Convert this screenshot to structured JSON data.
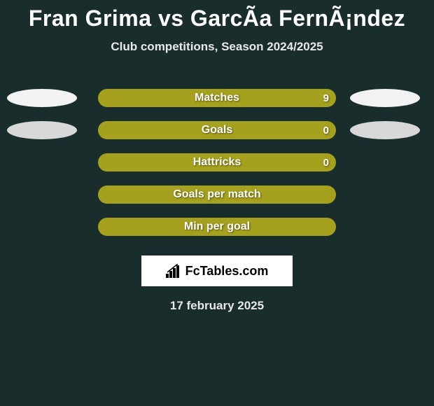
{
  "title": "Fran Grima vs GarcÃ­a FernÃ¡ndez",
  "subtitle": "Club competitions, Season 2024/2025",
  "date": "17 february 2025",
  "logo_text": "FcTables.com",
  "colors": {
    "background": "#1a2d2d",
    "bar_fill": "#a5a11f",
    "ellipse_light": "#f2f2f2",
    "ellipse_dark": "#d8d8d8",
    "text": "#ffffff"
  },
  "stats": [
    {
      "label": "Matches",
      "value": "9",
      "left_ellipse": true,
      "right_ellipse": true,
      "left_color": "#f2f2f2",
      "right_color": "#f2f2f2"
    },
    {
      "label": "Goals",
      "value": "0",
      "left_ellipse": true,
      "right_ellipse": true,
      "left_color": "#d8d8d8",
      "right_color": "#d8d8d8"
    },
    {
      "label": "Hattricks",
      "value": "0",
      "left_ellipse": false,
      "right_ellipse": false
    },
    {
      "label": "Goals per match",
      "value": "",
      "left_ellipse": false,
      "right_ellipse": false
    },
    {
      "label": "Min per goal",
      "value": "",
      "left_ellipse": false,
      "right_ellipse": false
    }
  ]
}
